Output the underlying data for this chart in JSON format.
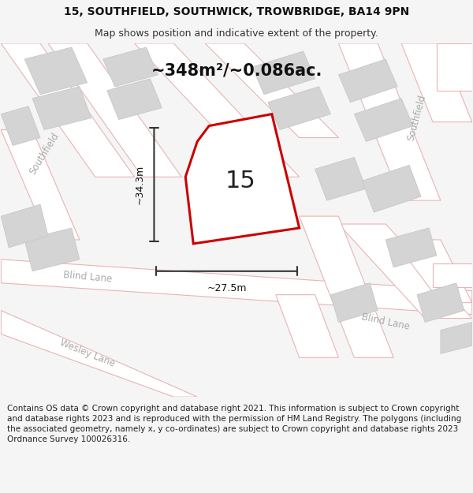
{
  "title_line1": "15, SOUTHFIELD, SOUTHWICK, TROWBRIDGE, BA14 9PN",
  "title_line2": "Map shows position and indicative extent of the property.",
  "area_text": "~348m²/~0.086ac.",
  "property_number": "15",
  "dim_vertical": "~34.3m",
  "dim_horizontal": "~27.5m",
  "footer_text": "Contains OS data © Crown copyright and database right 2021. This information is subject to Crown copyright and database rights 2023 and is reproduced with the permission of HM Land Registry. The polygons (including the associated geometry, namely x, y co-ordinates) are subject to Crown copyright and database rights 2023 Ordnance Survey 100026316.",
  "bg_color": "#f5f5f5",
  "map_bg_color": "#e8e8e8",
  "road_fill": "#ffffff",
  "road_edge": "#e8b4b4",
  "road_edge_lw": 0.8,
  "building_fill": "#d4d4d4",
  "building_edge": "#c8c8c8",
  "property_fill": "#ffffff",
  "property_edge": "#cc0000",
  "property_edge_lw": 2.2,
  "label_color": "#aaaaaa",
  "arrow_color": "#333333",
  "title_fontsize": 10,
  "subtitle_fontsize": 9,
  "area_fontsize": 15,
  "number_fontsize": 22,
  "dim_fontsize": 9,
  "label_fontsize": 8.5,
  "footer_fontsize": 7.5
}
